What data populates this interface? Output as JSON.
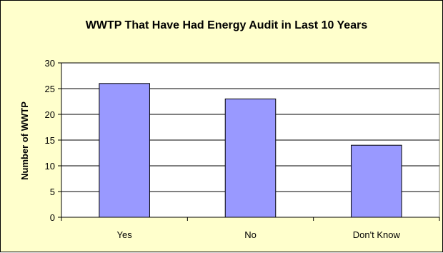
{
  "chart_data": {
    "type": "bar",
    "title": "WWTP That Have Had Energy Audit in Last 10 Years",
    "xlabel": "",
    "ylabel": "Number of WWTP",
    "categories": [
      "Yes",
      "No",
      "Don't Know"
    ],
    "values": [
      26,
      23,
      14
    ],
    "ylim": [
      0,
      30
    ],
    "yticks": [
      0,
      5,
      10,
      15,
      20,
      25,
      30
    ],
    "grid": true,
    "legend": "none",
    "colors": {
      "background": "#ffffcc",
      "plot_area": "#ffffff",
      "bar_fill": "#9999ff",
      "bar_stroke": "#000000",
      "grid": "#000000"
    }
  }
}
